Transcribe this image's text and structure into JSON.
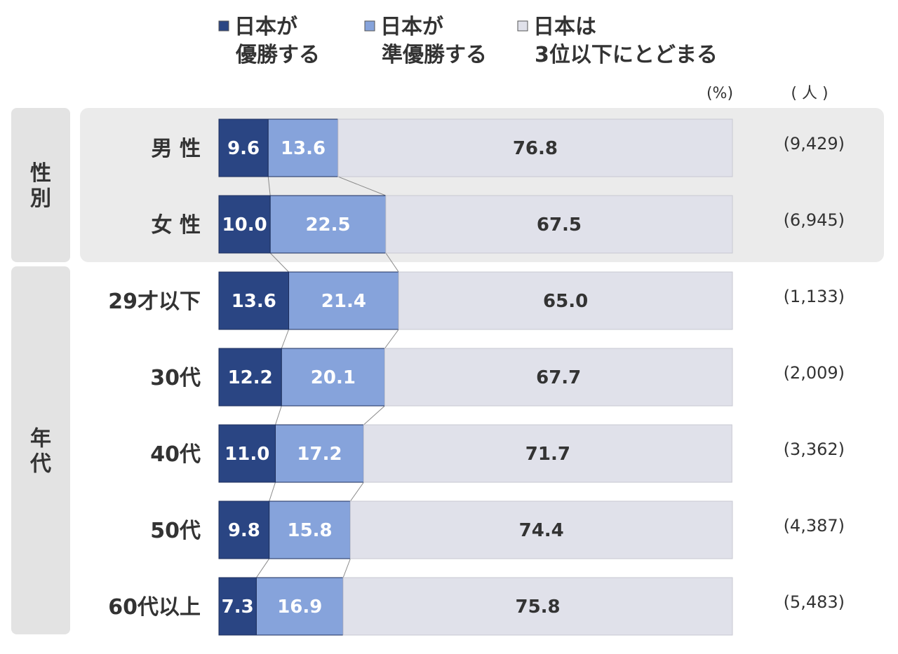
{
  "chart_data": {
    "type": "bar",
    "stacked": true,
    "orientation": "horizontal",
    "percent_unit": "(%)",
    "count_unit": "( 人 )",
    "series": [
      {
        "name": "日本が\n優勝する",
        "color": "#2a4583"
      },
      {
        "name": "日本が\n準優勝する",
        "color": "#86a3db"
      },
      {
        "name": "日本は\n3位以下にとどまる",
        "color": "#e0e1ea"
      }
    ],
    "groups": [
      {
        "label": "性別",
        "rows": [
          {
            "category": "男 性",
            "values": [
              9.6,
              13.6,
              76.8
            ],
            "count": "(9,429)"
          },
          {
            "category": "女 性",
            "values": [
              10.0,
              22.5,
              67.5
            ],
            "count": "(6,945)"
          }
        ]
      },
      {
        "label": "年代",
        "rows": [
          {
            "category": "29才以下",
            "values": [
              13.6,
              21.4,
              65.0
            ],
            "count": "(1,133)"
          },
          {
            "category": "30代",
            "values": [
              12.2,
              20.1,
              67.7
            ],
            "count": "(2,009)"
          },
          {
            "category": "40代",
            "values": [
              11.0,
              17.2,
              71.7
            ],
            "count": "(3,362)"
          },
          {
            "category": "50代",
            "values": [
              9.8,
              15.8,
              74.4
            ],
            "count": "(4,387)"
          },
          {
            "category": "60代以上",
            "values": [
              7.3,
              16.9,
              75.8
            ],
            "count": "(5,483)"
          }
        ]
      }
    ],
    "xlim": [
      0,
      100
    ]
  }
}
